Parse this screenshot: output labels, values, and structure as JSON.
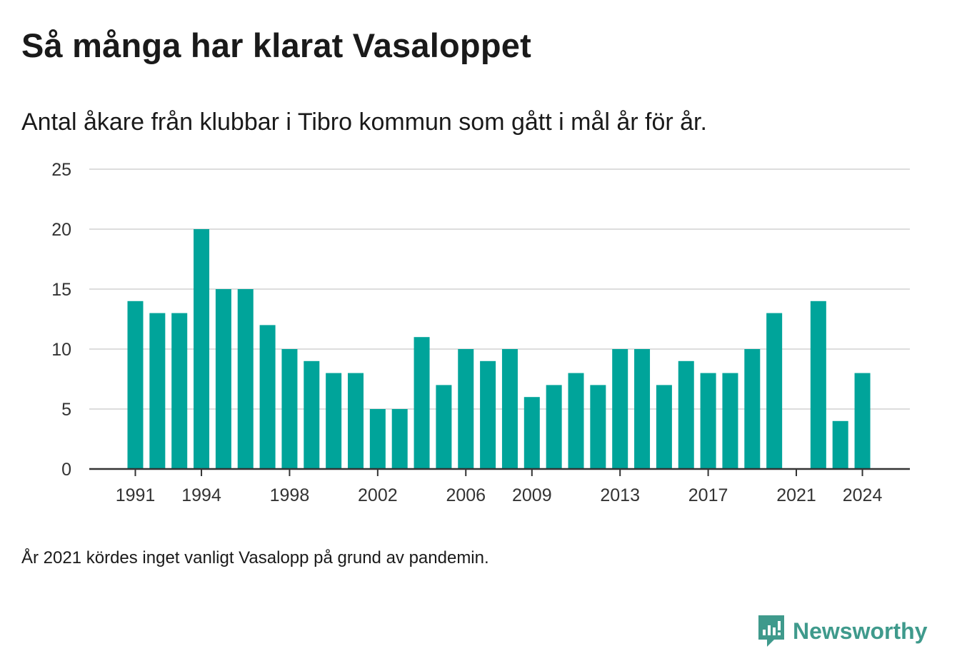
{
  "title": "Så många har klarat Vasaloppet",
  "subtitle": "Antal åkare från klubbar i Tibro kommun som gått i mål år för år.",
  "footnote": "År 2021 kördes inget vanligt Vasalopp på grund av pandemin.",
  "brand": {
    "name": "Newsworthy",
    "icon": "newsworthy-logo-icon"
  },
  "colors": {
    "bar": "#00a49a",
    "grid": "#dddddd",
    "axis": "#333333",
    "brand": "#3f9a8c"
  },
  "chart_data": {
    "type": "bar",
    "categories": [
      "1991",
      "1992",
      "1993",
      "1994",
      "1995",
      "1996",
      "1997",
      "1998",
      "1999",
      "2000",
      "2001",
      "2002",
      "2003",
      "2004",
      "2005",
      "2006",
      "2007",
      "2008",
      "2009",
      "2010",
      "2011",
      "2012",
      "2013",
      "2014",
      "2015",
      "2016",
      "2017",
      "2018",
      "2019",
      "2020",
      "2021",
      "2022",
      "2023",
      "2024"
    ],
    "values": [
      14,
      13,
      13,
      20,
      15,
      15,
      12,
      10,
      9,
      8,
      8,
      5,
      5,
      11,
      7,
      10,
      9,
      10,
      6,
      7,
      8,
      7,
      10,
      10,
      7,
      9,
      8,
      8,
      10,
      13,
      null,
      14,
      4,
      8
    ],
    "x_tick_labels": [
      "1991",
      "1994",
      "1998",
      "2002",
      "2006",
      "2009",
      "2013",
      "2017",
      "2021",
      "2024"
    ],
    "y_ticks": [
      0,
      5,
      10,
      15,
      20,
      25
    ],
    "ylim": [
      0,
      25
    ],
    "grid": true,
    "legend": "none"
  }
}
